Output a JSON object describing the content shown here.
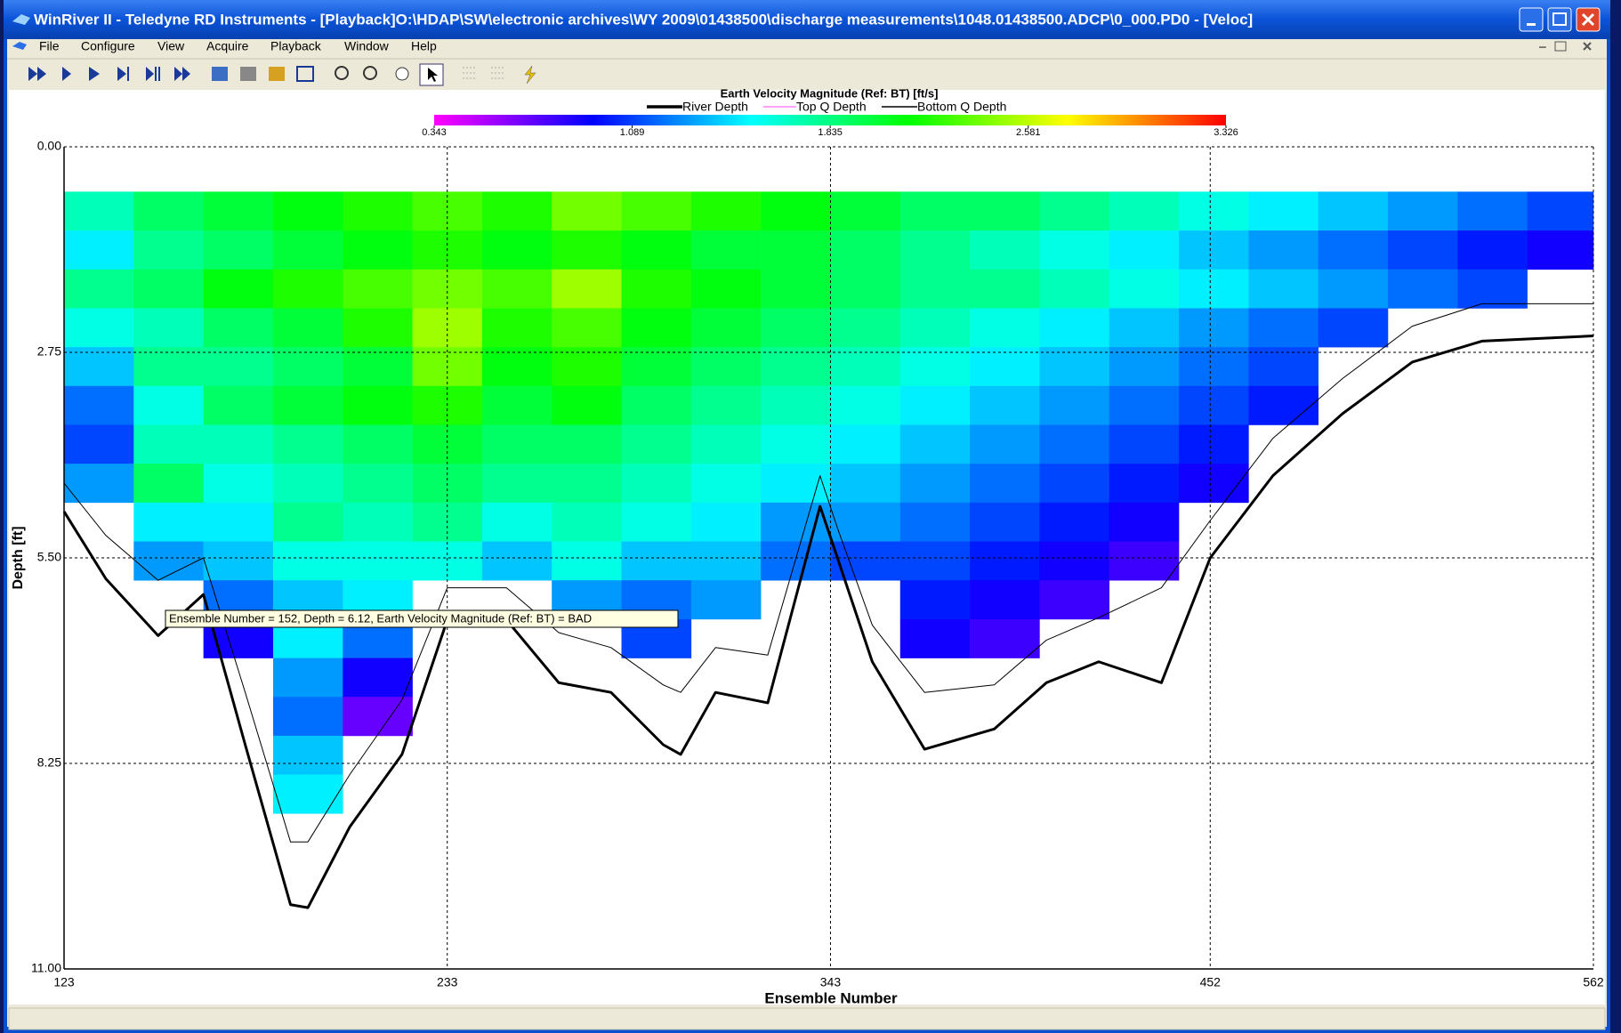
{
  "window": {
    "title": "WinRiver II - Teledyne RD Instruments - [Playback]O:\\HDAP\\SW\\electronic archives\\WY 2009\\01438500\\discharge measurements\\1048.01438500.ADCP\\0_000.PD0 - [Veloc]",
    "menu": [
      "File",
      "Configure",
      "View",
      "Acquire",
      "Playback",
      "Window",
      "Help"
    ]
  },
  "chart_data": {
    "type": "heatmap",
    "title": "Earth Velocity Magnitude (Ref: BT) [ft/s]",
    "x_label": "Ensemble Number",
    "y_label": "Depth [ft]",
    "xlim": [
      123,
      562
    ],
    "ylim": [
      0,
      11
    ],
    "y_inverted": true,
    "grid": true,
    "xticks": [
      123,
      233,
      343,
      452,
      562
    ],
    "yticks": [
      {
        "value": 0,
        "label": "0.00"
      },
      {
        "value": 2.75,
        "label": "2.75"
      },
      {
        "value": 5.5,
        "label": "5.50"
      },
      {
        "value": 8.25,
        "label": "8.25"
      },
      {
        "value": 11,
        "label": "11.00"
      }
    ],
    "colormap": [
      "#ff00ff",
      "#0000ff",
      "#00ffff",
      "#00ff00",
      "#ffff00",
      "#ff0000"
    ],
    "colorbar": {
      "range": [
        0.343,
        3.326
      ],
      "ticks": [
        0.343,
        1.089,
        1.835,
        2.581,
        3.326
      ]
    },
    "x_bins": [
      123,
      143,
      163,
      183,
      203,
      223,
      243,
      263,
      283,
      303,
      323,
      343,
      363,
      383,
      403,
      423,
      443,
      463,
      483,
      503,
      523,
      543,
      562
    ],
    "depth_bins": [
      0.6,
      1.12,
      1.64,
      2.16,
      2.68,
      3.2,
      3.72,
      4.24,
      4.76,
      5.28,
      5.8,
      6.32,
      6.84,
      7.36,
      7.88,
      8.4,
      8.92
    ],
    "values": [
      [
        1.7,
        1.5,
        1.8,
        1.6,
        1.4,
        1.2,
        1.1,
        1.3
      ],
      [
        1.9,
        1.8,
        1.9,
        1.7,
        1.8,
        1.6,
        1.7,
        1.9,
        1.5,
        1.3
      ],
      [
        2.0,
        1.9,
        2.1,
        1.9,
        1.8,
        1.9,
        1.7,
        1.6,
        1.5,
        1.4,
        1.2,
        0.9
      ],
      [
        2.1,
        2.0,
        2.2,
        2.0,
        1.9,
        2.0,
        1.8,
        1.7,
        1.8,
        1.6,
        1.4,
        1.5,
        1.3,
        1.2,
        1.4,
        1.5
      ],
      [
        2.2,
        2.1,
        2.3,
        2.2,
        2.0,
        2.1,
        1.9,
        1.8,
        1.7,
        1.6,
        1.5,
        1.2,
        0.9,
        0.7
      ],
      [
        2.3,
        2.2,
        2.4,
        2.5,
        2.4,
        2.2,
        2.0,
        1.9,
        1.8,
        1.6
      ],
      [
        2.2,
        2.1,
        2.3,
        2.2,
        2.1,
        2.0,
        1.9,
        1.8,
        1.6,
        1.4
      ],
      [
        2.4,
        2.2,
        2.5,
        2.3,
        2.2,
        2.1,
        1.9,
        1.8,
        1.7,
        1.6,
        1.3
      ],
      [
        2.3,
        2.1,
        2.2,
        2.1,
        2.0,
        1.9,
        1.8,
        1.7,
        1.6,
        1.4,
        1.2,
        1.1
      ],
      [
        2.2,
        2.0,
        2.1,
        2.0,
        1.9,
        1.8,
        1.7,
        1.6,
        1.5,
        1.4,
        1.3
      ],
      [
        2.1,
        2.0,
        2.0,
        1.9,
        1.8,
        1.7,
        1.6,
        1.5,
        1.3,
        1.2
      ],
      [
        2.0,
        1.9,
        1.9,
        1.8,
        1.7,
        1.6,
        1.5,
        1.4,
        1.3,
        1.1
      ],
      [
        1.9,
        1.8,
        1.8,
        1.7,
        1.6,
        1.5,
        1.4,
        1.3,
        1.2,
        1.1,
        1.0,
        0.9
      ],
      [
        1.9,
        1.7,
        1.8,
        1.6,
        1.5,
        1.4,
        1.3,
        1.2,
        1.1,
        1.0,
        0.9,
        0.8
      ],
      [
        1.8,
        1.6,
        1.7,
        1.5,
        1.4,
        1.3,
        1.2,
        1.1,
        1.0,
        0.9,
        0.8
      ],
      [
        1.7,
        1.5,
        1.6,
        1.4,
        1.3,
        1.2,
        1.1,
        1.0,
        0.9,
        0.8
      ],
      [
        1.6,
        1.4,
        1.5,
        1.3,
        1.2,
        1.1,
        1.0,
        0.9
      ],
      [
        1.5,
        1.3,
        1.4,
        1.2,
        1.1,
        1.0
      ],
      [
        1.4,
        1.2,
        1.3,
        1.1
      ],
      [
        1.3,
        1.1,
        1.2
      ],
      [
        1.2,
        1.0,
        1.1
      ],
      [
        1.1,
        0.9
      ]
    ],
    "lines": {
      "x": [
        123,
        135,
        150,
        163,
        175,
        188,
        193,
        205,
        220,
        233,
        250,
        265,
        280,
        295,
        300,
        310,
        325,
        340,
        345,
        355,
        370,
        390,
        405,
        420,
        438,
        452,
        470,
        490,
        510,
        530,
        562
      ],
      "series": [
        {
          "name": "River Depth",
          "color": "#000000",
          "width": 3,
          "values": [
            4.88,
            5.78,
            6.54,
            5.99,
            8.0,
            10.14,
            10.18,
            9.1,
            8.13,
            6.33,
            6.33,
            7.17,
            7.3,
            8.0,
            8.13,
            7.3,
            7.44,
            4.81,
            5.5,
            6.89,
            8.06,
            7.79,
            7.17,
            6.89,
            7.17,
            5.5,
            4.4,
            3.57,
            2.88,
            2.6,
            2.53
          ]
        },
        {
          "name": "Top Q Depth",
          "color": "#ff80ff",
          "width": 1,
          "values": []
        },
        {
          "name": "Bottom Q Depth",
          "color": "#000000",
          "width": 1,
          "values": [
            4.5,
            5.2,
            5.8,
            5.5,
            7.3,
            9.3,
            9.3,
            8.4,
            7.4,
            5.9,
            5.9,
            6.5,
            6.7,
            7.2,
            7.3,
            6.7,
            6.8,
            4.4,
            5.1,
            6.4,
            7.3,
            7.2,
            6.6,
            6.3,
            5.9,
            5.0,
            3.9,
            3.1,
            2.4,
            2.1,
            2.1
          ]
        }
      ]
    },
    "tooltip": "Ensemble Number = 152, Depth  = 6.12, Earth Velocity Magnitude (Ref: BT)  = BAD"
  }
}
